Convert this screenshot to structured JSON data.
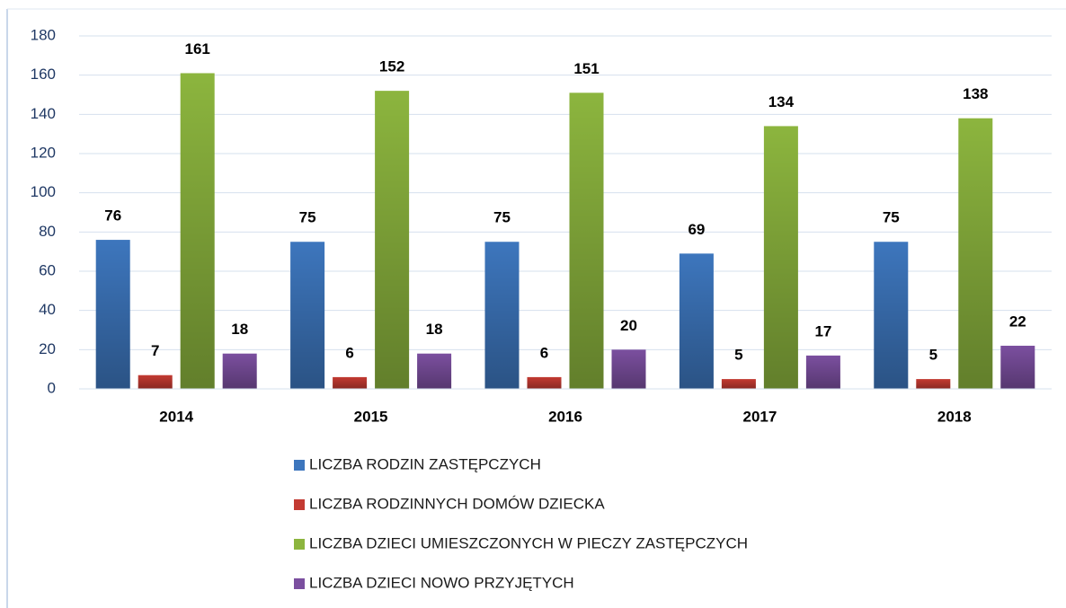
{
  "chart_data": {
    "type": "bar",
    "categories": [
      "2014",
      "2015",
      "2016",
      "2017",
      "2018"
    ],
    "series": [
      {
        "name": "LICZBA RODZIN ZASTĘPCZYCH",
        "color": "#3d76bd",
        "values": [
          76,
          75,
          75,
          69,
          75
        ]
      },
      {
        "name": "LICZBA RODZINNYCH DOMÓW DZIECKA",
        "color": "#c33a32",
        "values": [
          7,
          6,
          6,
          5,
          5
        ]
      },
      {
        "name": "LICZBA DZIECI UMIESZCZONYCH W PIECZY ZASTĘPCZYCH",
        "color": "#8cb53e",
        "values": [
          161,
          152,
          151,
          134,
          138
        ]
      },
      {
        "name": "LICZBA DZIECI NOWO PRZYJĘTYCH",
        "color": "#7b4f9f",
        "values": [
          18,
          18,
          20,
          17,
          22
        ]
      }
    ],
    "ylim": [
      0,
      180
    ],
    "yticks": [
      0,
      20,
      40,
      60,
      80,
      100,
      120,
      140,
      160,
      180
    ],
    "grid": true,
    "legend": "bottom"
  }
}
